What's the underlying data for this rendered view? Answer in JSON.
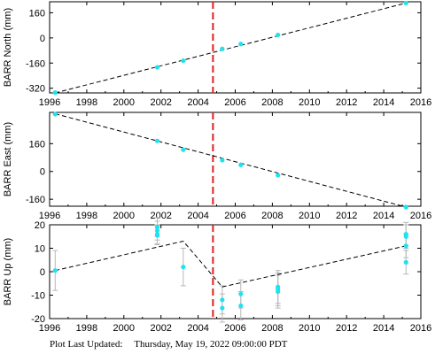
{
  "footer": {
    "label": "Plot Last Updated:",
    "timestamp": "Thursday, May 19, 2022 09:00:00 PDT"
  },
  "colors": {
    "point": "#1ee3ee",
    "errorbar": "#b8b8b8",
    "fit": "#000000",
    "event": "#dd2222"
  },
  "chart_data": [
    {
      "type": "scatter",
      "ylabel": "BARR North (mm)",
      "xlim": [
        1996,
        2016
      ],
      "ylim": [
        -350,
        230
      ],
      "xticks": [
        1996,
        1998,
        2000,
        2002,
        2004,
        2006,
        2008,
        2010,
        2012,
        2014,
        2016
      ],
      "yticks": [
        -320,
        -160,
        0,
        160
      ],
      "event_x": 2004.8,
      "series": [
        {
          "points": [
            {
              "x": 1996.3,
              "y": -348
            },
            {
              "x": 2001.8,
              "y": -187
            },
            {
              "x": 2003.2,
              "y": -145
            },
            {
              "x": 2005.3,
              "y": -70
            },
            {
              "x": 2006.3,
              "y": -39
            },
            {
              "x": 2008.3,
              "y": 19
            },
            {
              "x": 2015.2,
              "y": 222
            }
          ],
          "fit": [
            {
              "x": 1996.3,
              "y": -350
            },
            {
              "x": 2015.2,
              "y": 222
            }
          ]
        }
      ]
    },
    {
      "type": "scatter",
      "ylabel": "BARR East (mm)",
      "xlim": [
        1996,
        2016
      ],
      "ylim": [
        -200,
        340
      ],
      "xticks": [
        1996,
        1998,
        2000,
        2002,
        2004,
        2006,
        2008,
        2010,
        2012,
        2014,
        2016
      ],
      "yticks": [
        -160,
        0,
        160
      ],
      "event_x": 2004.8,
      "series": [
        {
          "points": [
            {
              "x": 1996.3,
              "y": 330
            },
            {
              "x": 2001.8,
              "y": 176
            },
            {
              "x": 2003.2,
              "y": 125
            },
            {
              "x": 2005.3,
              "y": 65
            },
            {
              "x": 2006.3,
              "y": 38
            },
            {
              "x": 2008.3,
              "y": -22
            },
            {
              "x": 2015.2,
              "y": -205
            }
          ],
          "fit": [
            {
              "x": 1996.3,
              "y": 332
            },
            {
              "x": 2015.2,
              "y": -205
            }
          ]
        }
      ]
    },
    {
      "type": "scatter",
      "ylabel": "BARR Up (mm)",
      "xlim": [
        1996,
        2016
      ],
      "ylim": [
        -20,
        20
      ],
      "xticks": [
        1996,
        1998,
        2000,
        2002,
        2004,
        2006,
        2008,
        2010,
        2012,
        2014,
        2016
      ],
      "yticks": [
        -20,
        -10,
        0,
        10,
        20
      ],
      "event_x": 2004.8,
      "series": [
        {
          "points": [
            {
              "x": 1996.3,
              "y": 0.5,
              "err": 8.5
            },
            {
              "x": 2001.8,
              "y": 19,
              "err": 4
            },
            {
              "x": 2001.8,
              "y": 17.5,
              "err": 4
            },
            {
              "x": 2001.8,
              "y": 16,
              "err": 4
            },
            {
              "x": 2001.8,
              "y": 15.5,
              "err": 4
            },
            {
              "x": 2003.2,
              "y": 2,
              "err": 8
            },
            {
              "x": 2005.3,
              "y": -12,
              "err": 6
            },
            {
              "x": 2005.3,
              "y": -15.5,
              "err": 6
            },
            {
              "x": 2006.3,
              "y": -9.5,
              "err": 6
            },
            {
              "x": 2006.3,
              "y": -14.5,
              "err": 6
            },
            {
              "x": 2008.3,
              "y": -6.5,
              "err": 7
            },
            {
              "x": 2008.3,
              "y": -7.5,
              "err": 7
            },
            {
              "x": 2008.3,
              "y": -8.5,
              "err": 7
            },
            {
              "x": 2015.2,
              "y": 16,
              "err": 5
            },
            {
              "x": 2015.2,
              "y": 15,
              "err": 5
            },
            {
              "x": 2015.2,
              "y": 11,
              "err": 5
            },
            {
              "x": 2015.2,
              "y": 4,
              "err": 5
            }
          ],
          "fit": [
            {
              "x": 1996.3,
              "y": 0.5
            },
            {
              "x": 2003.2,
              "y": 13
            },
            {
              "x": 2005.3,
              "y": -6.5
            },
            {
              "x": 2015.2,
              "y": 11
            }
          ]
        }
      ]
    }
  ]
}
